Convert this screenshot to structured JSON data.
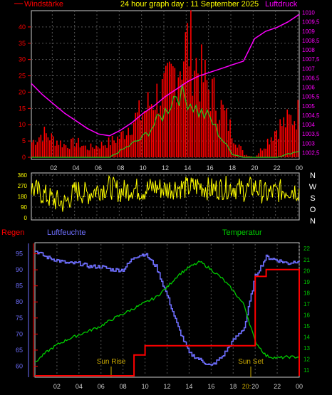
{
  "colors": {
    "wind": "#ff0000",
    "gust": "#22cc22",
    "pressure": "#ff00ff",
    "direction": "#ffff00",
    "rain": "#ff0000",
    "humidity": "#6f6fff",
    "temperature": "#00cc00",
    "sun": "#ccaa00",
    "frame": "#cccccc",
    "grid": "#555555",
    "header": "#ffff00",
    "dirLabel": "#ffffff"
  },
  "header": {
    "title": "24 hour graph day : 11 September 2025",
    "left_label": "Windstärke",
    "right_label": "Luftdruck"
  },
  "time_ticks": [
    "02",
    "04",
    "06",
    "08",
    "10",
    "12",
    "14",
    "16",
    "18",
    "20",
    "22",
    "00"
  ],
  "wind_panel": {
    "y_ticks": [
      "0",
      "5",
      "10",
      "15",
      "20",
      "25",
      "30",
      "35",
      "40"
    ],
    "y_max": 45,
    "pressure_ticks": [
      "1002,5",
      "1003",
      "1003,5",
      "1004",
      "1004,5",
      "1005",
      "1005,5",
      "1006",
      "1006,5",
      "1007",
      "1007,5",
      "1008",
      "1008,5",
      "1009",
      "1009,5",
      "1010"
    ],
    "pressure_range": [
      1002.25,
      1010.1
    ]
  },
  "direction_panel": {
    "y_ticks": [
      "0",
      "90",
      "180",
      "270",
      "360"
    ],
    "compass": [
      "N",
      "W",
      "S",
      "O",
      "N"
    ]
  },
  "bottom_panel": {
    "left_label": "Regen",
    "mid_label": "Luftfeuchte",
    "right_label": "Temperatur",
    "humidity_ticks": [
      "60",
      "65",
      "70",
      "75",
      "80",
      "85",
      "90",
      "95"
    ],
    "humidity_range": [
      57,
      98
    ],
    "temperature_ticks": [
      "11",
      "12",
      "13",
      "14",
      "15",
      "16",
      "17",
      "18",
      "19",
      "20",
      "21",
      "22"
    ],
    "temperature_range": [
      10.5,
      22.4
    ],
    "rain_range": [
      0,
      5.7
    ],
    "sun_rise": "Sun Rise",
    "sun_set": "Sun Set",
    "sun_set_time": "20:"
  },
  "chart_data": [
    {
      "type": "bar",
      "title": "24 hour graph day : 11 September 2025",
      "ylabel": "Windstärke",
      "ylim": [
        0,
        45
      ],
      "x": [
        0,
        1,
        2,
        3,
        4,
        5,
        6,
        7,
        8,
        9,
        10,
        11,
        12,
        13,
        14,
        15,
        16,
        17,
        18,
        19,
        20,
        21,
        22,
        23,
        24
      ],
      "series": [
        {
          "name": "Windstärke",
          "values": [
            5,
            8,
            6,
            4,
            5,
            3,
            4,
            5,
            7,
            12,
            15,
            20,
            22,
            30,
            38,
            28,
            22,
            16,
            8,
            1,
            0,
            5,
            10,
            12,
            15
          ]
        },
        {
          "name": "Böen",
          "values": [
            0,
            0,
            0,
            0,
            0,
            0,
            0,
            0,
            2,
            4,
            6,
            10,
            14,
            20,
            18,
            14,
            12,
            6,
            1,
            0,
            0,
            0,
            0,
            1,
            2
          ]
        }
      ],
      "grid": true
    },
    {
      "type": "line",
      "ylabel": "Luftdruck",
      "ylim": [
        1002.25,
        1010.1
      ],
      "x": [
        0,
        1,
        2,
        3,
        4,
        5,
        6,
        7,
        8,
        9,
        10,
        11,
        12,
        13,
        14,
        15,
        16,
        17,
        18,
        19,
        20,
        21,
        22,
        23,
        24
      ],
      "series": [
        {
          "name": "Luftdruck",
          "values": [
            1006.2,
            1005.6,
            1005.1,
            1004.6,
            1004.2,
            1003.8,
            1003.5,
            1003.4,
            1003.7,
            1004.1,
            1004.6,
            1005.0,
            1005.5,
            1005.9,
            1006.3,
            1006.6,
            1006.8,
            1007.0,
            1007.2,
            1007.4,
            1008.6,
            1009.0,
            1009.2,
            1009.5,
            1009.9
          ]
        }
      ]
    },
    {
      "type": "line",
      "ylim": [
        0,
        360
      ],
      "x": [
        0,
        1,
        2,
        3,
        4,
        5,
        6,
        7,
        8,
        9,
        10,
        11,
        12,
        13,
        14,
        15,
        16,
        17,
        18,
        19,
        20,
        21,
        22,
        23,
        24
      ],
      "series": [
        {
          "name": "Windrichtung",
          "values": [
            250,
            200,
            150,
            120,
            230,
            200,
            240,
            260,
            220,
            250,
            230,
            260,
            240,
            260,
            250,
            270,
            240,
            250,
            260,
            230,
            260,
            200,
            220,
            240,
            230
          ]
        }
      ]
    },
    {
      "type": "line",
      "x": [
        0,
        1,
        2,
        3,
        4,
        5,
        6,
        7,
        8,
        9,
        10,
        11,
        12,
        13,
        14,
        15,
        16,
        17,
        18,
        19,
        20,
        21,
        22,
        23,
        24
      ],
      "series": [
        {
          "name": "Luftfeuchte",
          "values": [
            96,
            94,
            93,
            92,
            92,
            91,
            91,
            90,
            90,
            94,
            95,
            91,
            82,
            72,
            64,
            62,
            60,
            63,
            68,
            72,
            88,
            94,
            93,
            92,
            93
          ]
        },
        {
          "name": "Temperatur",
          "values": [
            11.7,
            12.6,
            13.3,
            13.8,
            14.2,
            14.6,
            15.0,
            15.6,
            16.1,
            16.6,
            17.1,
            17.6,
            18.5,
            19.6,
            20.3,
            20.8,
            20.1,
            19.3,
            18.2,
            16.9,
            13.6,
            12.3,
            12.1,
            12.2,
            12.2
          ]
        },
        {
          "name": "Regen",
          "values": [
            0,
            0,
            0,
            0,
            0,
            0,
            0,
            0,
            0,
            0.9,
            1.3,
            1.3,
            1.3,
            1.3,
            1.3,
            1.3,
            1.3,
            1.3,
            1.3,
            1.3,
            4.3,
            4.6,
            4.6,
            4.6,
            4.6
          ]
        }
      ],
      "grid": true
    }
  ]
}
